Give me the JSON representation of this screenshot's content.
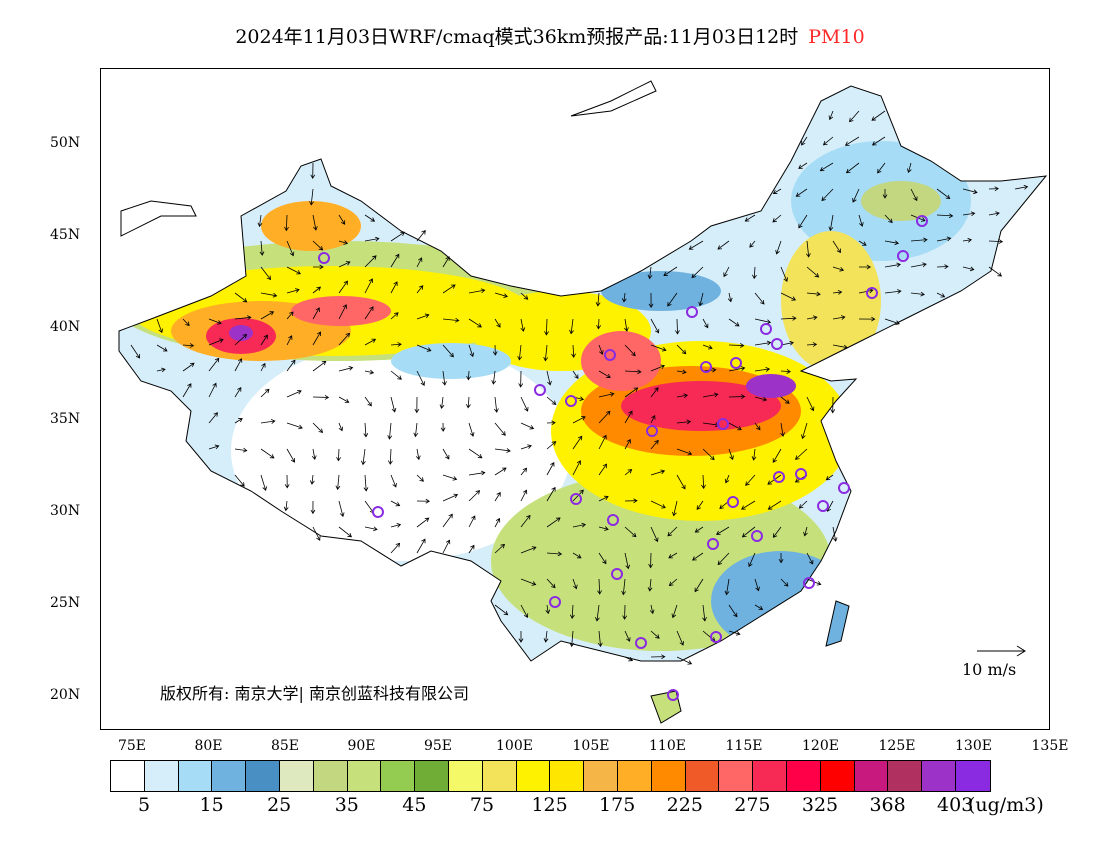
{
  "title": {
    "main": "2024年11月03日WRF/cmaq模式36km预报产品:11月03日12时",
    "pollutant": "PM10"
  },
  "axes": {
    "lat_labels": [
      "50N",
      "45N",
      "40N",
      "35N",
      "30N",
      "25N",
      "20N"
    ],
    "lon_labels": [
      "75E",
      "80E",
      "85E",
      "90E",
      "95E",
      "100E",
      "105E",
      "110E",
      "115E",
      "120E",
      "125E",
      "130E",
      "135E"
    ]
  },
  "colorbar": {
    "colors": [
      "#ffffff",
      "#d6eefa",
      "#a6dcf5",
      "#6fb2df",
      "#4a8fc4",
      "#dfe9c0",
      "#c3d680",
      "#c6e07c",
      "#93cc50",
      "#70ad37",
      "#f4f967",
      "#f2e35a",
      "#fff200",
      "#ffe600",
      "#f5b547",
      "#ffae25",
      "#ff8a00",
      "#f05a28",
      "#ff6666",
      "#f72a55",
      "#ff0048",
      "#ff0000",
      "#c8197e",
      "#b03060",
      "#9c32c8",
      "#8a2be2"
    ],
    "labels": [
      "5",
      "15",
      "25",
      "35",
      "45",
      "75",
      "125",
      "175",
      "225",
      "275",
      "325",
      "368",
      "403"
    ],
    "unit": "(ug/m3)"
  },
  "copyright": "版权所有: 南京大学| 南京创蓝科技有限公司",
  "wind_scale": "10 m/s"
}
